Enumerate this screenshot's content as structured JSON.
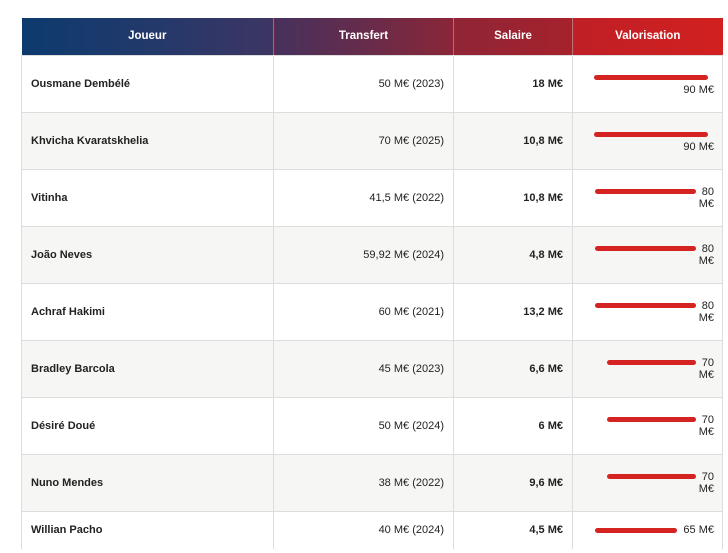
{
  "table": {
    "headers": {
      "player": "Joueur",
      "transfer": "Transfert",
      "salary": "Salaire",
      "valuation": "Valorisation"
    },
    "rows": [
      {
        "player": "Ousmane Dembélé",
        "transfer": "50 M€ (2023)",
        "salary": "18 M€",
        "valuation": "90 M€",
        "valuation_value": 90
      },
      {
        "player": "Khvicha Kvaratskhelia",
        "transfer": "70 M€ (2025)",
        "salary": "10,8 M€",
        "valuation": "90 M€",
        "valuation_value": 90
      },
      {
        "player": "Vitinha",
        "transfer": "41,5 M€ (2022)",
        "salary": "10,8 M€",
        "valuation": "80 M€",
        "valuation_value": 80
      },
      {
        "player": "João Neves",
        "transfer": "59,92 M€ (2024)",
        "salary": "4,8 M€",
        "valuation": "80 M€",
        "valuation_value": 80
      },
      {
        "player": "Achraf Hakimi",
        "transfer": "60 M€ (2021)",
        "salary": "13,2 M€",
        "valuation": "80 M€",
        "valuation_value": 80
      },
      {
        "player": "Bradley Barcola",
        "transfer": "45 M€ (2023)",
        "salary": "6,6 M€",
        "valuation": "70 M€",
        "valuation_value": 70
      },
      {
        "player": "Désiré Doué",
        "transfer": "50 M€ (2024)",
        "salary": "6 M€",
        "valuation": "70 M€",
        "valuation_value": 70
      },
      {
        "player": "Nuno Mendes",
        "transfer": "38 M€ (2022)",
        "salary": "9,6 M€",
        "valuation": "70 M€",
        "valuation_value": 70
      },
      {
        "player": "Willian Pacho",
        "transfer": "40 M€ (2024)",
        "salary": "4,5 M€",
        "valuation": "65 M€",
        "valuation_value": 65
      }
    ]
  },
  "colors": {
    "bar": "#d42321",
    "header_start": "#0d3a6e",
    "header_end": "#d2201f"
  }
}
